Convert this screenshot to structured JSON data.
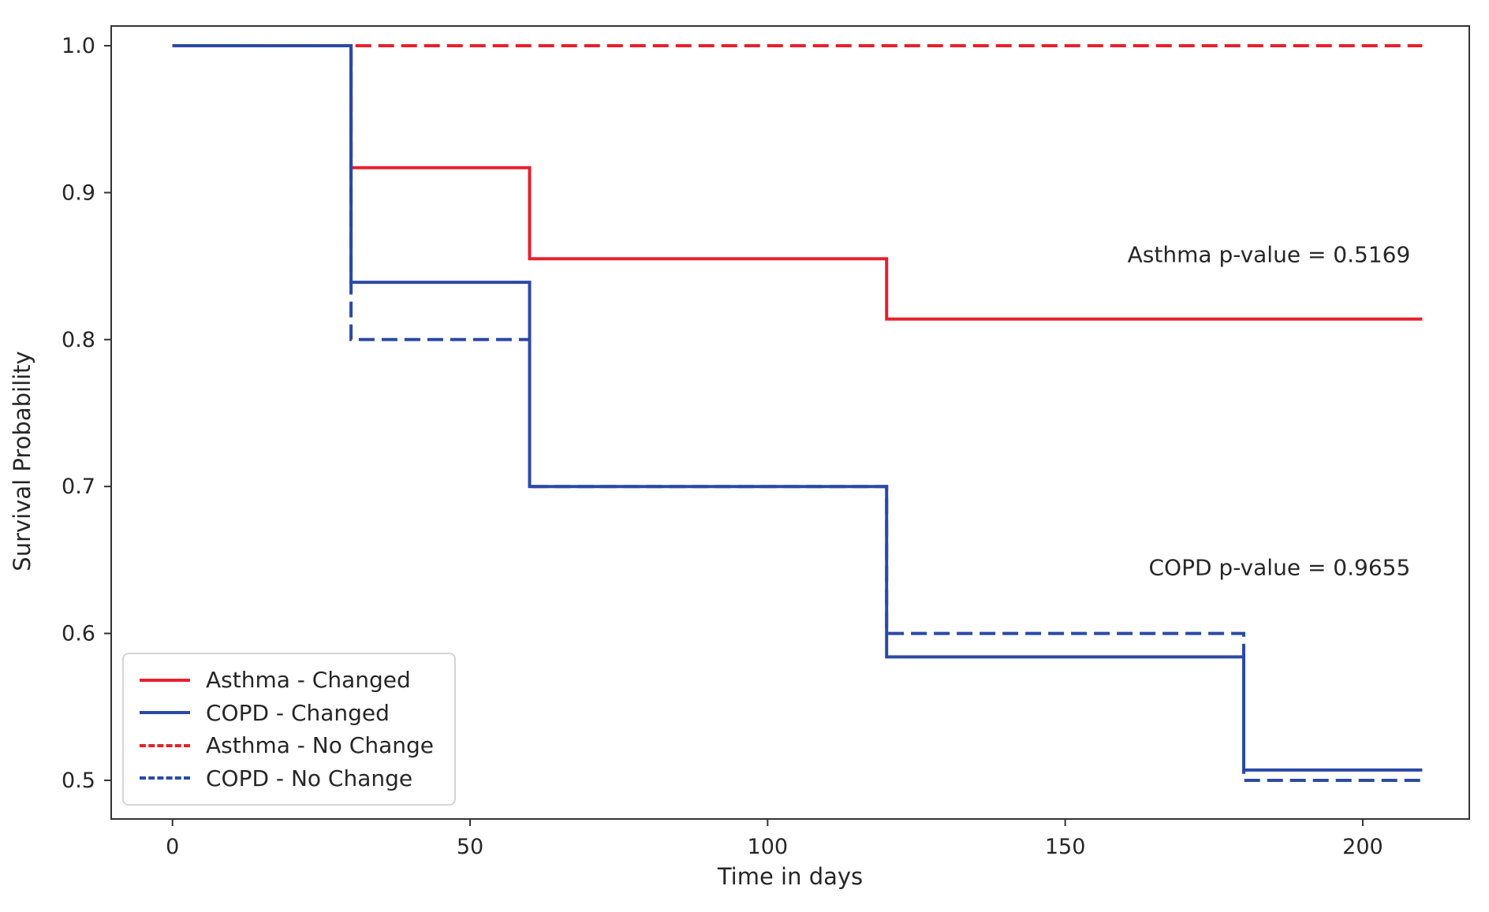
{
  "chart_data": {
    "type": "line",
    "subtype": "kaplan-meier-step-curves",
    "title": "",
    "xlabel": "Time in days",
    "ylabel": "Survival Probability",
    "xlim": [
      -10.3,
      217.9
    ],
    "ylim": [
      0.4737,
      1.0134
    ],
    "xticks": [
      0,
      50,
      100,
      150,
      200
    ],
    "xtick_labels": [
      "0",
      "50",
      "100",
      "150",
      "200"
    ],
    "yticks": [
      1.0,
      0.9,
      0.8,
      0.7,
      0.6,
      0.5
    ],
    "ytick_labels": [
      "1.0",
      "0.9",
      "0.8",
      "0.7",
      "0.6",
      "0.5"
    ],
    "grid": false,
    "legend_position": "lower left",
    "series": [
      {
        "name": "Asthma - Changed",
        "color": "#e8202d",
        "line_style": "solid",
        "step": "post",
        "x": [
          0,
          30,
          60,
          120,
          210
        ],
        "y": [
          1.0,
          0.917,
          0.855,
          0.814,
          0.814
        ]
      },
      {
        "name": "COPD - Changed",
        "color": "#2b49a5",
        "line_style": "solid",
        "step": "post",
        "x": [
          0,
          30,
          60,
          120,
          180,
          210
        ],
        "y": [
          1.0,
          0.839,
          0.7,
          0.584,
          0.507,
          0.507
        ]
      },
      {
        "name": "Asthma - No Change",
        "color": "#e8202d",
        "line_style": "dashed",
        "step": "post",
        "x": [
          0,
          210
        ],
        "y": [
          1.0,
          1.0
        ]
      },
      {
        "name": "COPD - No Change",
        "color": "#2b49a5",
        "line_style": "dashed",
        "step": "post",
        "x": [
          0,
          30,
          60,
          120,
          180,
          210
        ],
        "y": [
          1.0,
          0.8,
          0.7,
          0.6,
          0.5,
          0.5
        ]
      }
    ],
    "annotations": [
      {
        "name": "asthma-pvalue-annotation",
        "text": "Asthma p-value = 0.5169",
        "x": 208,
        "y": 0.858,
        "align": "right"
      },
      {
        "name": "copd-pvalue-annotation",
        "text": "COPD p-value = 0.9655",
        "x": 208,
        "y": 0.645,
        "align": "right"
      }
    ],
    "colors": {
      "axis": "#333333",
      "tick_text": "#262626",
      "annotation_text": "#262626",
      "legend_border": "#d4d4d4"
    }
  }
}
